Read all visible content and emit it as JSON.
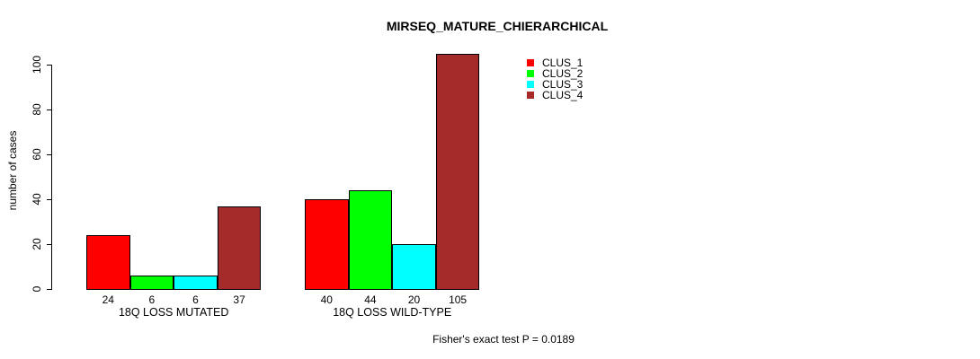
{
  "chart_data": {
    "type": "bar",
    "title": "MIRSEQ_MATURE_CHIERARCHICAL",
    "ylabel": "number of cases",
    "xlabel": "",
    "categories": [
      "18Q LOSS MUTATED",
      "18Q LOSS WILD-TYPE"
    ],
    "series": [
      {
        "name": "CLUS_1",
        "color": "#ff0000",
        "values": [
          24,
          40
        ]
      },
      {
        "name": "CLUS_2",
        "color": "#00ff00",
        "values": [
          6,
          44
        ]
      },
      {
        "name": "CLUS_3",
        "color": "#00ffff",
        "values": [
          6,
          20
        ]
      },
      {
        "name": "CLUS_4",
        "color": "#a52a2a",
        "values": [
          37,
          105
        ]
      }
    ],
    "bar_labels": [
      [
        24,
        6,
        6,
        37
      ],
      [
        40,
        44,
        20,
        105
      ]
    ],
    "yticks": [
      0,
      20,
      40,
      60,
      80,
      100
    ],
    "ylim": [
      0,
      105
    ],
    "grid": false,
    "legend_position": "top-right",
    "annotation": "Fisher's exact test P = 0.0189"
  }
}
